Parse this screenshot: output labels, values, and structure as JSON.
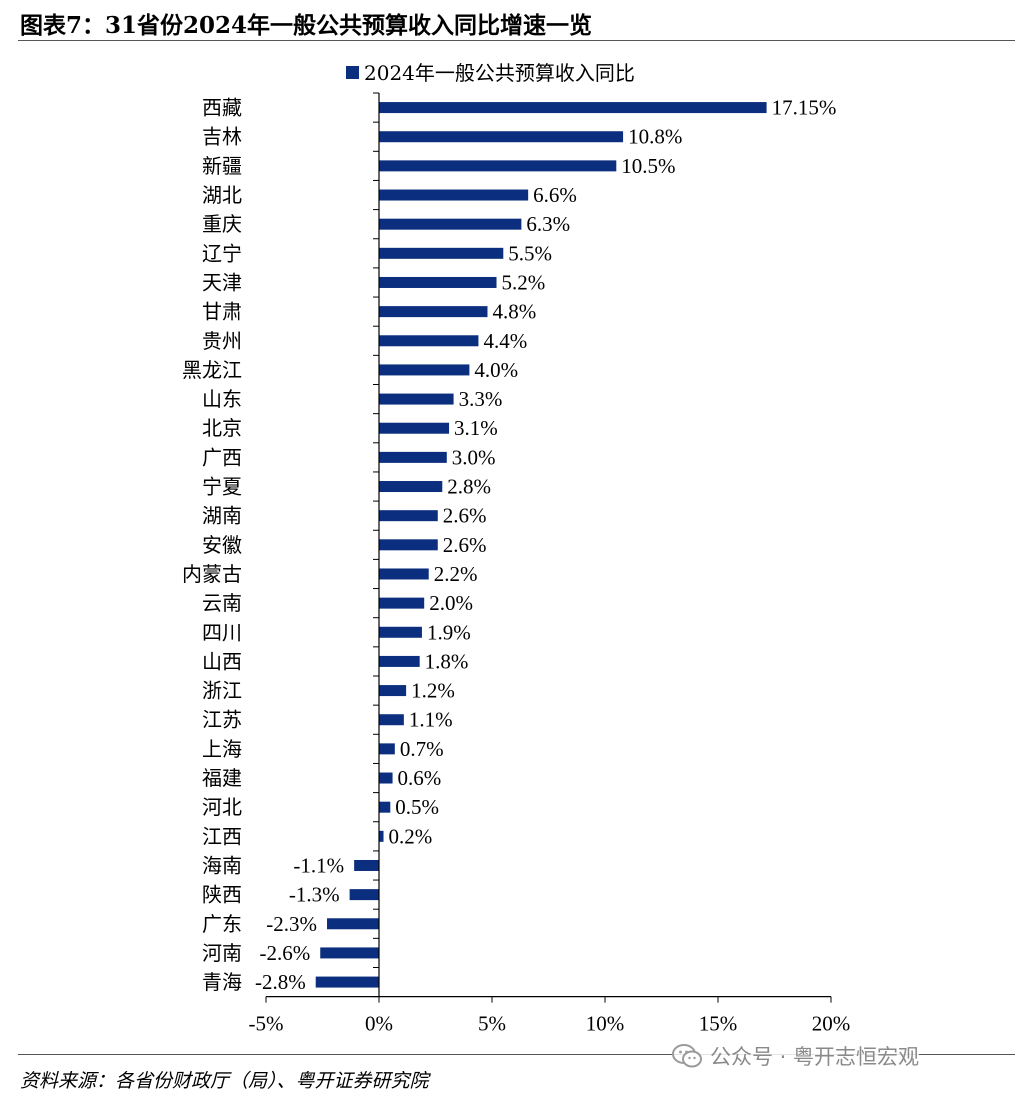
{
  "title": "图表7：31省份2024年一般公共预算收入同比增速一览",
  "source": "资料来源：各省份财政厅（局）、粤开证券研究院",
  "watermark": {
    "icon": "wechat-icon",
    "text": "公众号 · 粤开志恒宏观"
  },
  "colors": {
    "bar": "#0b2f7e",
    "axis": "#000000"
  },
  "chart_data": {
    "type": "bar",
    "orientation": "horizontal",
    "legend": "top-center",
    "grid": false,
    "series": [
      {
        "name": "2024年一般公共预算收入同比",
        "values": [
          17.15,
          10.8,
          10.5,
          6.6,
          6.3,
          5.5,
          5.2,
          4.8,
          4.4,
          4.0,
          3.3,
          3.1,
          3.0,
          2.8,
          2.6,
          2.6,
          2.2,
          2.0,
          1.9,
          1.8,
          1.2,
          1.1,
          0.7,
          0.6,
          0.5,
          0.2,
          -1.1,
          -1.3,
          -2.3,
          -2.6,
          -2.8
        ]
      }
    ],
    "categories": [
      "西藏",
      "吉林",
      "新疆",
      "湖北",
      "重庆",
      "辽宁",
      "天津",
      "甘肃",
      "贵州",
      "黑龙江",
      "山东",
      "北京",
      "广西",
      "宁夏",
      "湖南",
      "安徽",
      "内蒙古",
      "云南",
      "四川",
      "山西",
      "浙江",
      "江苏",
      "上海",
      "福建",
      "河北",
      "江西",
      "海南",
      "陕西",
      "广东",
      "河南",
      "青海"
    ],
    "value_labels": [
      "17.15%",
      "10.8%",
      "10.5%",
      "6.6%",
      "6.3%",
      "5.5%",
      "5.2%",
      "4.8%",
      "4.4%",
      "4.0%",
      "3.3%",
      "3.1%",
      "3.0%",
      "2.8%",
      "2.6%",
      "2.6%",
      "2.2%",
      "2.0%",
      "1.9%",
      "1.8%",
      "1.2%",
      "1.1%",
      "0.7%",
      "0.6%",
      "0.5%",
      "0.2%",
      "-1.1%",
      "-1.3%",
      "-2.3%",
      "-2.6%",
      "-2.8%"
    ],
    "xlim": [
      -5,
      20
    ],
    "xticks": [
      -5,
      0,
      5,
      10,
      15,
      20
    ],
    "xtick_labels": [
      "-5%",
      "0%",
      "5%",
      "10%",
      "15%",
      "20%"
    ]
  }
}
